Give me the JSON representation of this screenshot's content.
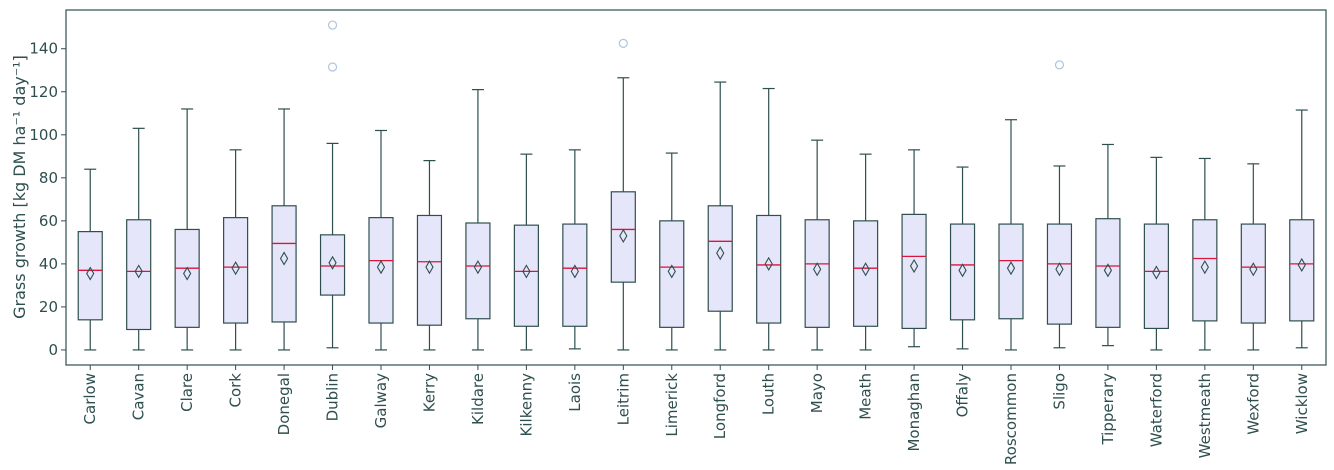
{
  "chart_data": {
    "type": "boxplot",
    "title": "",
    "xlabel": "",
    "ylabel": "Grass growth [kg DM ha⁻¹ day⁻¹]",
    "ylim": [
      -7,
      158
    ],
    "yticks": [
      0,
      20,
      40,
      60,
      80,
      100,
      120,
      140
    ],
    "grid": false,
    "legend": "none",
    "colors": {
      "box_fill": "#e6e6fa",
      "box_edge": "#2f4f4f",
      "median": "#dc143c",
      "mean_marker": "#2f4f4f",
      "outlier": "#b0c4de",
      "axis": "#2f4f4f"
    },
    "categories": [
      "Carlow",
      "Cavan",
      "Clare",
      "Cork",
      "Donegal",
      "Dublin",
      "Galway",
      "Kerry",
      "Kildare",
      "Kilkenny",
      "Laois",
      "Leitrim",
      "Limerick",
      "Longford",
      "Louth",
      "Mayo",
      "Meath",
      "Monaghan",
      "Offaly",
      "Roscommon",
      "Sligo",
      "Tipperary",
      "Waterford",
      "Westmeath",
      "Wexford",
      "Wicklow"
    ],
    "boxes": [
      {
        "whislo": 0,
        "q1": 14,
        "med": 37,
        "q3": 55,
        "whishi": 84,
        "mean": 35.5,
        "fliers": []
      },
      {
        "whislo": 0,
        "q1": 9.5,
        "med": 36.5,
        "q3": 60.5,
        "whishi": 103,
        "mean": 36.5,
        "fliers": []
      },
      {
        "whislo": 0,
        "q1": 10.5,
        "med": 38,
        "q3": 56,
        "whishi": 112,
        "mean": 35.5,
        "fliers": []
      },
      {
        "whislo": 0,
        "q1": 12.5,
        "med": 38.5,
        "q3": 61.5,
        "whishi": 93,
        "mean": 38,
        "fliers": []
      },
      {
        "whislo": 0,
        "q1": 13,
        "med": 49.5,
        "q3": 67,
        "whishi": 112,
        "mean": 42.5,
        "fliers": []
      },
      {
        "whislo": 1,
        "q1": 25.5,
        "med": 39,
        "q3": 53.5,
        "whishi": 96,
        "mean": 40.5,
        "fliers": [
          131.5,
          151
        ]
      },
      {
        "whislo": 0,
        "q1": 12.5,
        "med": 41.5,
        "q3": 61.5,
        "whishi": 102,
        "mean": 38.5,
        "fliers": []
      },
      {
        "whislo": 0,
        "q1": 11.5,
        "med": 41,
        "q3": 62.5,
        "whishi": 88,
        "mean": 38.5,
        "fliers": []
      },
      {
        "whislo": 0,
        "q1": 14.5,
        "med": 39,
        "q3": 59,
        "whishi": 121,
        "mean": 38.5,
        "fliers": []
      },
      {
        "whislo": 0,
        "q1": 11,
        "med": 36.5,
        "q3": 58,
        "whishi": 91,
        "mean": 36.5,
        "fliers": []
      },
      {
        "whislo": 0.5,
        "q1": 11,
        "med": 38,
        "q3": 58.5,
        "whishi": 93,
        "mean": 36.5,
        "fliers": []
      },
      {
        "whislo": 0,
        "q1": 31.5,
        "med": 56,
        "q3": 73.5,
        "whishi": 126.5,
        "mean": 53,
        "fliers": [
          142.5
        ]
      },
      {
        "whislo": 0,
        "q1": 10.5,
        "med": 38.5,
        "q3": 60,
        "whishi": 91.5,
        "mean": 36.5,
        "fliers": []
      },
      {
        "whislo": 0,
        "q1": 18,
        "med": 50.5,
        "q3": 67,
        "whishi": 124.5,
        "mean": 45,
        "fliers": []
      },
      {
        "whislo": 0,
        "q1": 12.5,
        "med": 39.5,
        "q3": 62.5,
        "whishi": 121.5,
        "mean": 40,
        "fliers": []
      },
      {
        "whislo": 0,
        "q1": 10.5,
        "med": 40,
        "q3": 60.5,
        "whishi": 97.5,
        "mean": 37.5,
        "fliers": []
      },
      {
        "whislo": 0,
        "q1": 11,
        "med": 38,
        "q3": 60,
        "whishi": 91,
        "mean": 37.5,
        "fliers": []
      },
      {
        "whislo": 1.5,
        "q1": 10,
        "med": 43.5,
        "q3": 63,
        "whishi": 93,
        "mean": 39,
        "fliers": []
      },
      {
        "whislo": 0.5,
        "q1": 14,
        "med": 39.5,
        "q3": 58.5,
        "whishi": 85,
        "mean": 37,
        "fliers": []
      },
      {
        "whislo": 0,
        "q1": 14.5,
        "med": 41.5,
        "q3": 58.5,
        "whishi": 107,
        "mean": 38,
        "fliers": []
      },
      {
        "whislo": 1,
        "q1": 12,
        "med": 40,
        "q3": 58.5,
        "whishi": 85.5,
        "mean": 37.5,
        "fliers": [
          132.5
        ]
      },
      {
        "whislo": 2,
        "q1": 10.5,
        "med": 39,
        "q3": 61,
        "whishi": 95.5,
        "mean": 37,
        "fliers": []
      },
      {
        "whislo": 0,
        "q1": 10,
        "med": 36.5,
        "q3": 58.5,
        "whishi": 89.5,
        "mean": 36,
        "fliers": []
      },
      {
        "whislo": 0,
        "q1": 13.5,
        "med": 42.5,
        "q3": 60.5,
        "whishi": 89,
        "mean": 38.5,
        "fliers": []
      },
      {
        "whislo": 0,
        "q1": 12.5,
        "med": 38.5,
        "q3": 58.5,
        "whishi": 86.5,
        "mean": 37.5,
        "fliers": []
      },
      {
        "whislo": 1,
        "q1": 13.5,
        "med": 40,
        "q3": 60.5,
        "whishi": 111.5,
        "mean": 39.5,
        "fliers": []
      }
    ]
  }
}
